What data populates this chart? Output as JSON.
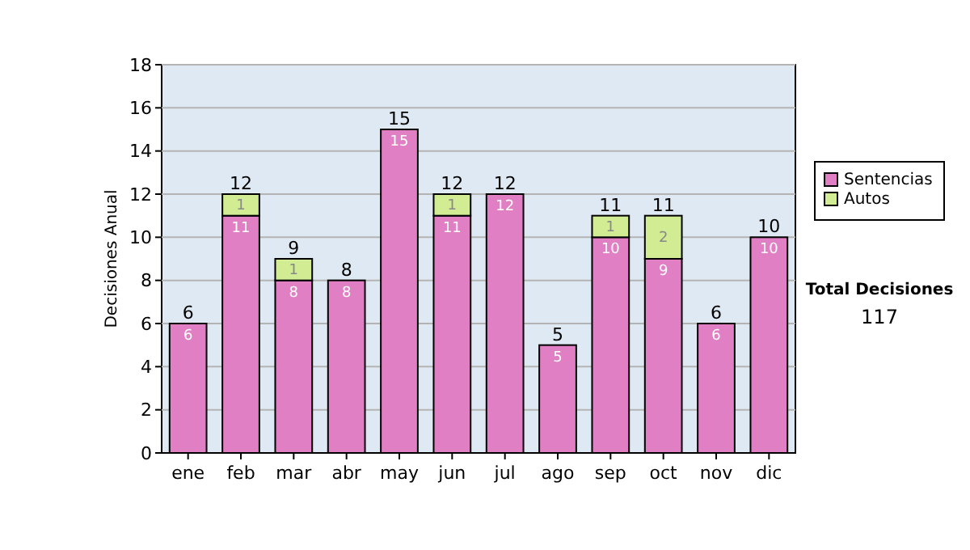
{
  "chart_data": {
    "type": "bar",
    "stacked": true,
    "ylabel": "Decisiones Anual",
    "categories": [
      "ene",
      "feb",
      "mar",
      "abr",
      "may",
      "jun",
      "jul",
      "ago",
      "sep",
      "oct",
      "nov",
      "dic"
    ],
    "series": [
      {
        "name": "Sentencias",
        "color": "#e07fc4",
        "values": [
          6,
          11,
          8,
          8,
          15,
          11,
          12,
          5,
          10,
          9,
          6,
          10
        ]
      },
      {
        "name": "Autos",
        "color": "#d2ec94",
        "values": [
          null,
          1,
          1,
          null,
          null,
          1,
          null,
          null,
          1,
          2,
          null,
          null
        ]
      }
    ],
    "ylim": [
      0,
      18
    ],
    "yticks": [
      0,
      2,
      4,
      6,
      8,
      10,
      12,
      14,
      16,
      18
    ],
    "grid": "y",
    "legend": "right",
    "data_labels": true,
    "totals": [
      "6",
      "12",
      "9",
      "8",
      "15",
      "12",
      "12",
      "5",
      "11",
      "11",
      "6",
      "10"
    ],
    "annotations": [
      "Total Decisiones",
      "117"
    ]
  }
}
